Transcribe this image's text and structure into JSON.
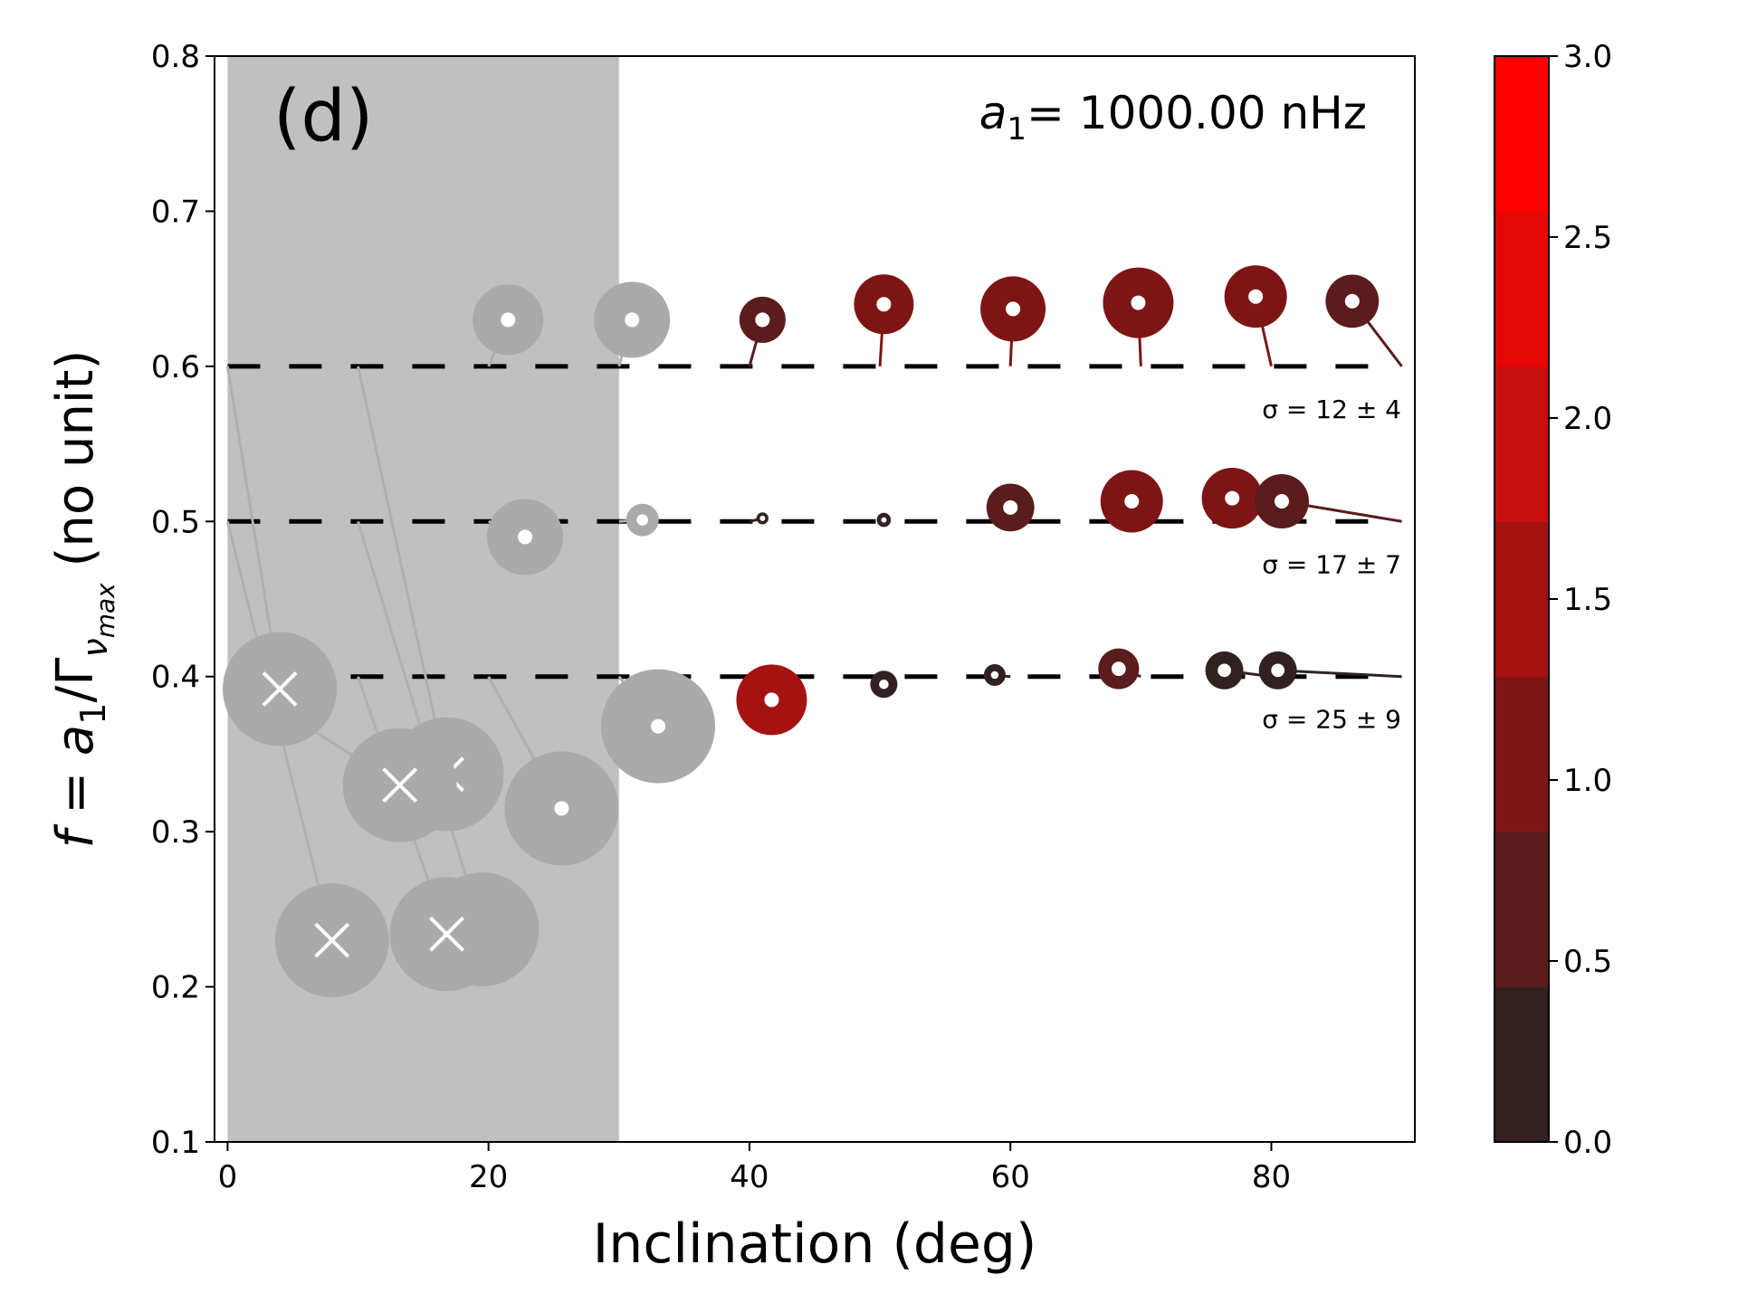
{
  "chart_data": {
    "type": "scatter",
    "panel_label": "(d)",
    "annotation": {
      "prefix": "a",
      "sub": "1",
      "suffix": "= 1000.00 nHz"
    },
    "xlabel": "Inclination (deg)",
    "ylabel": {
      "main": "f = a",
      "sub1": "1",
      "mid": "/Γ",
      "sub2": "ν",
      "sub3": "max",
      "unit": " (no unit)"
    },
    "xlim": [
      -1,
      91
    ],
    "ylim": [
      0.1,
      0.8
    ],
    "x_ticks": [
      "0",
      "20",
      "40",
      "60",
      "80"
    ],
    "y_ticks": [
      "0.1",
      "0.2",
      "0.3",
      "0.4",
      "0.5",
      "0.6",
      "0.7",
      "0.8"
    ],
    "shaded_region": {
      "x_range": [
        0,
        30
      ],
      "color": "#c0c0c0"
    },
    "reference_lines": [
      0.4,
      0.5,
      0.6
    ],
    "sigma_labels": [
      {
        "y": 0.6,
        "text": "σ = 12 ± 4"
      },
      {
        "y": 0.5,
        "text": "σ = 17 ± 7"
      },
      {
        "y": 0.4,
        "text": "σ = 25 ± 9"
      }
    ],
    "colorbar": {
      "range": [
        0,
        3
      ],
      "ticks": [
        "0.0",
        "0.5",
        "1.0",
        "1.5",
        "2.0",
        "2.5",
        "3.0"
      ],
      "colors": [
        "#312221",
        "#5a1c1c",
        "#7e1515",
        "#a41212",
        "#c70f0f",
        "#e50808",
        "#ff0000"
      ]
    },
    "series": [
      {
        "true_f": 0.6,
        "points": [
          {
            "x": 21.5,
            "y": 0.63,
            "size": 1.3,
            "color": "#aaaaaa",
            "cross": false,
            "tx": 20.0,
            "ty": 0.6
          },
          {
            "x": 31.0,
            "y": 0.63,
            "size": 1.4,
            "color": "#aaaaaa",
            "cross": false,
            "tx": 30.0,
            "ty": 0.6
          },
          {
            "x": 41.0,
            "y": 0.63,
            "size": 0.85,
            "color": "#5a1c1c",
            "cross": false,
            "tx": 40.0,
            "ty": 0.6
          },
          {
            "x": 50.3,
            "y": 0.64,
            "size": 1.1,
            "color": "#7e1515",
            "cross": false,
            "tx": 50.0,
            "ty": 0.6
          },
          {
            "x": 60.2,
            "y": 0.637,
            "size": 1.2,
            "color": "#7e1515",
            "cross": false,
            "tx": 60.0,
            "ty": 0.6
          },
          {
            "x": 69.8,
            "y": 0.641,
            "size": 1.3,
            "color": "#7e1515",
            "cross": false,
            "tx": 70.0,
            "ty": 0.6
          },
          {
            "x": 78.8,
            "y": 0.645,
            "size": 1.15,
            "color": "#7e1515",
            "cross": false,
            "tx": 80.0,
            "ty": 0.6
          },
          {
            "x": 86.2,
            "y": 0.642,
            "size": 0.98,
            "color": "#5a1c1c",
            "cross": false,
            "tx": 90.0,
            "ty": 0.6
          }
        ]
      },
      {
        "true_f": 0.5,
        "points": [
          {
            "x": 22.8,
            "y": 0.49,
            "size": 1.4,
            "color": "#aaaaaa",
            "cross": false,
            "tx": 20.0,
            "ty": 0.5
          },
          {
            "x": 31.8,
            "y": 0.501,
            "size": 0.6,
            "color": "#aaaaaa",
            "cross": false,
            "tx": 30.0,
            "ty": 0.5
          },
          {
            "x": 41.0,
            "y": 0.502,
            "size": 0.22,
            "color": "#312221",
            "cross": false,
            "tx": 40.0,
            "ty": 0.5
          },
          {
            "x": 50.3,
            "y": 0.501,
            "size": 0.26,
            "color": "#312221",
            "cross": false,
            "tx": 50.0,
            "ty": 0.5
          },
          {
            "x": 60.0,
            "y": 0.509,
            "size": 0.88,
            "color": "#5a1c1c",
            "cross": false,
            "tx": 60.0,
            "ty": 0.5
          },
          {
            "x": 69.3,
            "y": 0.513,
            "size": 1.15,
            "color": "#7e1515",
            "cross": false,
            "tx": 70.0,
            "ty": 0.5
          },
          {
            "x": 77.0,
            "y": 0.515,
            "size": 1.12,
            "color": "#7e1515",
            "cross": false,
            "tx": 80.0,
            "ty": 0.5
          },
          {
            "x": 80.8,
            "y": 0.513,
            "size": 1.0,
            "color": "#5a1c1c",
            "cross": false,
            "tx": 90.0,
            "ty": 0.5
          }
        ]
      },
      {
        "true_f": 0.4,
        "points": [
          {
            "x": 4.0,
            "y": 0.392,
            "size": 2.1,
            "color": "#aaaaaa",
            "cross": true,
            "tx": 0.0,
            "ty": 0.6
          },
          {
            "x": 8.0,
            "y": 0.23,
            "size": 2.1,
            "color": "#aaaaaa",
            "cross": true,
            "tx": 0.0,
            "ty": 0.5
          },
          {
            "x": 16.8,
            "y": 0.337,
            "size": 2.1,
            "color": "#aaaaaa",
            "cross": true,
            "tx": 10.0,
            "ty": 0.6
          },
          {
            "x": 13.2,
            "y": 0.33,
            "size": 2.1,
            "color": "#aaaaaa",
            "cross": true,
            "tx": 0.0,
            "ty": 0.4
          },
          {
            "x": 19.5,
            "y": 0.237,
            "size": 2.1,
            "color": "#aaaaaa",
            "cross": true,
            "tx": 10.0,
            "ty": 0.5
          },
          {
            "x": 16.8,
            "y": 0.234,
            "size": 2.1,
            "color": "#aaaaaa",
            "cross": true,
            "tx": 10.0,
            "ty": 0.4
          },
          {
            "x": 25.6,
            "y": 0.315,
            "size": 2.1,
            "color": "#aaaaaa",
            "cross": false,
            "tx": 20.0,
            "ty": 0.4
          },
          {
            "x": 33.0,
            "y": 0.368,
            "size": 2.1,
            "color": "#aaaaaa",
            "cross": false,
            "tx": 30.0,
            "ty": 0.4
          },
          {
            "x": 41.7,
            "y": 0.385,
            "size": 1.3,
            "color": "#a41212",
            "cross": false,
            "tx": 40.0,
            "ty": 0.4
          },
          {
            "x": 50.3,
            "y": 0.395,
            "size": 0.5,
            "color": "#312221",
            "cross": false,
            "tx": 50.0,
            "ty": 0.4
          },
          {
            "x": 58.8,
            "y": 0.401,
            "size": 0.4,
            "color": "#312221",
            "cross": false,
            "tx": 60.0,
            "ty": 0.4
          },
          {
            "x": 68.3,
            "y": 0.405,
            "size": 0.75,
            "color": "#5a1c1c",
            "cross": false,
            "tx": 70.0,
            "ty": 0.4
          },
          {
            "x": 76.4,
            "y": 0.404,
            "size": 0.7,
            "color": "#312221",
            "cross": false,
            "tx": 80.0,
            "ty": 0.4
          },
          {
            "x": 80.5,
            "y": 0.404,
            "size": 0.7,
            "color": "#312221",
            "cross": false,
            "tx": 90.0,
            "ty": 0.4
          }
        ]
      }
    ]
  }
}
